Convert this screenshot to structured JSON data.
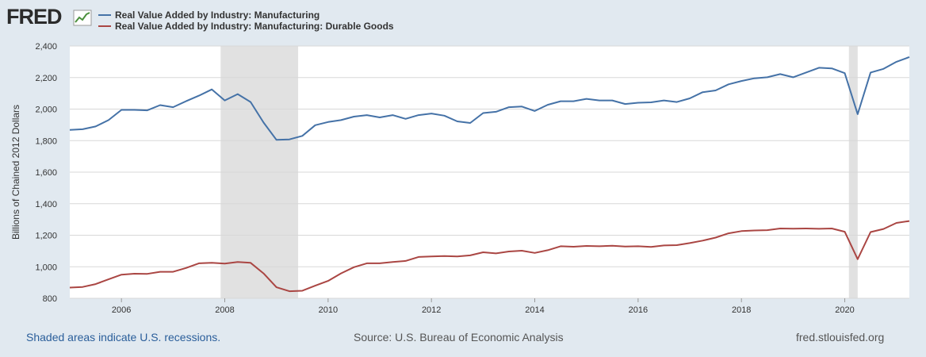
{
  "brand": {
    "logo_text": "FRED"
  },
  "colors": {
    "series_1": "#4572a7",
    "series_2": "#aa4643",
    "recession": "#e1e1e1",
    "grid": "#d8d8d8",
    "background": "#e1e9f0"
  },
  "chart_data": {
    "type": "line",
    "title": "",
    "xlabel": "",
    "ylabel": "Billions of Chained 2012 Dollars",
    "xlim": [
      2005.0,
      2021.25
    ],
    "ylim": [
      800,
      2400
    ],
    "yticks": [
      800,
      1000,
      1200,
      1400,
      1600,
      1800,
      2000,
      2200,
      2400
    ],
    "ytick_labels": [
      "800",
      "1,000",
      "1,200",
      "1,400",
      "1,600",
      "1,800",
      "2,000",
      "2,200",
      "2,400"
    ],
    "xticks": [
      2006,
      2008,
      2010,
      2012,
      2014,
      2016,
      2018,
      2020
    ],
    "xtick_labels": [
      "2006",
      "2008",
      "2010",
      "2012",
      "2014",
      "2016",
      "2018",
      "2020"
    ],
    "grid": true,
    "recessions": [
      [
        2007.92,
        2009.42
      ],
      [
        2020.08,
        2020.25
      ]
    ],
    "x": [
      2005.0,
      2005.25,
      2005.5,
      2005.75,
      2006.0,
      2006.25,
      2006.5,
      2006.75,
      2007.0,
      2007.25,
      2007.5,
      2007.75,
      2008.0,
      2008.25,
      2008.5,
      2008.75,
      2009.0,
      2009.25,
      2009.5,
      2009.75,
      2010.0,
      2010.25,
      2010.5,
      2010.75,
      2011.0,
      2011.25,
      2011.5,
      2011.75,
      2012.0,
      2012.25,
      2012.5,
      2012.75,
      2013.0,
      2013.25,
      2013.5,
      2013.75,
      2014.0,
      2014.25,
      2014.5,
      2014.75,
      2015.0,
      2015.25,
      2015.5,
      2015.75,
      2016.0,
      2016.25,
      2016.5,
      2016.75,
      2017.0,
      2017.25,
      2017.5,
      2017.75,
      2018.0,
      2018.25,
      2018.5,
      2018.75,
      2019.0,
      2019.25,
      2019.5,
      2019.75,
      2020.0,
      2020.25,
      2020.5,
      2020.75,
      2021.0,
      2021.25
    ],
    "series": [
      {
        "name": "Real Value Added by Industry: Manufacturing",
        "color": "#4572a7",
        "values": [
          1868,
          1872,
          1890,
          1930,
          1995,
          1995,
          1992,
          2025,
          2012,
          2050,
          2085,
          2125,
          2055,
          2095,
          2045,
          1915,
          1805,
          1808,
          1830,
          1898,
          1918,
          1930,
          1952,
          1962,
          1947,
          1962,
          1938,
          1962,
          1972,
          1958,
          1922,
          1912,
          1975,
          1983,
          2012,
          2016,
          1988,
          2027,
          2050,
          2050,
          2065,
          2055,
          2055,
          2032,
          2040,
          2043,
          2055,
          2045,
          2068,
          2107,
          2118,
          2157,
          2178,
          2195,
          2202,
          2222,
          2202,
          2232,
          2262,
          2258,
          2228,
          1968,
          2232,
          2255,
          2300,
          2330
        ]
      },
      {
        "name": "Real Value Added by Industry: Manufacturing: Durable Goods",
        "color": "#aa4643",
        "values": [
          868,
          872,
          890,
          920,
          950,
          956,
          955,
          968,
          968,
          992,
          1022,
          1025,
          1020,
          1030,
          1025,
          958,
          870,
          845,
          848,
          880,
          910,
          958,
          997,
          1022,
          1022,
          1030,
          1037,
          1062,
          1065,
          1068,
          1065,
          1072,
          1092,
          1085,
          1097,
          1102,
          1088,
          1105,
          1130,
          1127,
          1132,
          1130,
          1133,
          1128,
          1130,
          1126,
          1135,
          1137,
          1150,
          1166,
          1185,
          1212,
          1226,
          1230,
          1232,
          1243,
          1242,
          1243,
          1241,
          1243,
          1222,
          1048,
          1220,
          1240,
          1278,
          1290
        ]
      }
    ]
  },
  "footer": {
    "note": "Shaded areas indicate U.S. recessions.",
    "source": "Source: U.S. Bureau of Economic Analysis",
    "site": "fred.stlouisfed.org"
  }
}
